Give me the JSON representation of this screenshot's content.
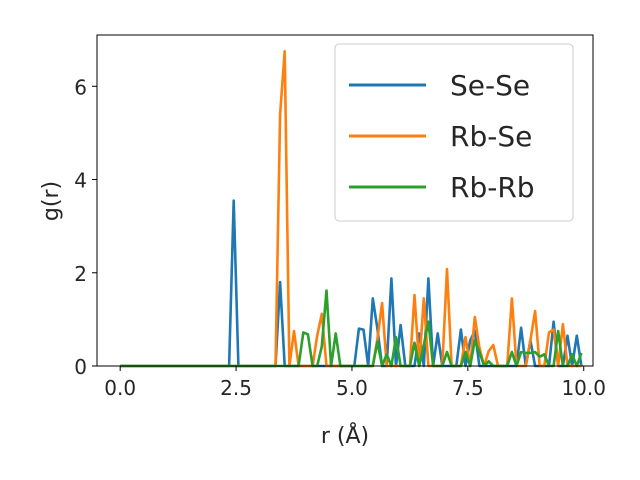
{
  "chart_data": {
    "type": "line",
    "title": "",
    "xlabel": "r (Å)",
    "ylabel": "g(r)",
    "xlim": [
      -0.5,
      10.2
    ],
    "ylim": [
      0,
      7.1
    ],
    "xticks": [
      0.0,
      2.5,
      5.0,
      7.5,
      10.0
    ],
    "xtick_labels": [
      "0.0",
      "2.5",
      "5.0",
      "7.5",
      "10.0"
    ],
    "yticks": [
      0,
      2,
      4,
      6
    ],
    "ytick_labels": [
      "0",
      "2",
      "4",
      "6"
    ],
    "grid": false,
    "legend_position": "top-right",
    "series": [
      {
        "name": "Se-Se",
        "color": "#1f77b4",
        "x": [
          0.0,
          2.25,
          2.35,
          2.45,
          2.55,
          3.35,
          3.45,
          3.55,
          5.05,
          5.15,
          5.25,
          5.35,
          5.45,
          5.55,
          5.65,
          5.75,
          5.85,
          5.95,
          6.05,
          6.15,
          6.25,
          6.35,
          6.45,
          6.55,
          6.65,
          6.75,
          6.85,
          6.95,
          7.05,
          7.15,
          7.25,
          7.35,
          7.45,
          7.55,
          7.65,
          7.75,
          7.85,
          7.95,
          8.05,
          8.15,
          8.25,
          8.35,
          8.45,
          8.55,
          8.65,
          8.75,
          8.85,
          8.95,
          9.05,
          9.15,
          9.25,
          9.35,
          9.45,
          9.55,
          9.65,
          9.75,
          9.85,
          9.95
        ],
        "y": [
          0.0,
          0.0,
          0.0,
          3.55,
          0.0,
          0.0,
          1.8,
          0.0,
          0.0,
          0.8,
          0.78,
          0.0,
          1.45,
          0.8,
          0.0,
          0.0,
          1.88,
          0.0,
          0.88,
          0.0,
          0.0,
          0.0,
          0.7,
          0.0,
          1.88,
          0.0,
          0.7,
          0.0,
          0.0,
          0.0,
          0.0,
          0.78,
          0.0,
          0.55,
          0.75,
          0.0,
          0.0,
          0.0,
          0.0,
          0.0,
          0.0,
          0.0,
          0.0,
          0.0,
          0.82,
          0.0,
          0.55,
          0.0,
          0.0,
          0.0,
          0.0,
          0.95,
          0.0,
          0.0,
          0.65,
          0.0,
          0.65,
          0.0
        ]
      },
      {
        "name": "Rb-Se",
        "color": "#ff7f0e",
        "x": [
          0.0,
          3.35,
          3.45,
          3.55,
          3.65,
          3.75,
          3.85,
          3.95,
          4.05,
          4.15,
          4.25,
          4.35,
          4.45,
          4.55,
          4.65,
          4.75,
          4.85,
          5.35,
          5.45,
          5.55,
          5.65,
          5.75,
          5.85,
          5.95,
          6.05,
          6.15,
          6.25,
          6.35,
          6.45,
          6.55,
          6.65,
          6.75,
          6.85,
          6.95,
          7.05,
          7.15,
          7.25,
          7.35,
          7.45,
          7.55,
          7.65,
          7.75,
          7.85,
          7.95,
          8.05,
          8.15,
          8.25,
          8.35,
          8.45,
          8.55,
          8.65,
          8.75,
          8.85,
          8.95,
          9.05,
          9.15,
          9.25,
          9.35,
          9.45,
          9.55,
          9.65,
          9.75,
          9.85,
          9.95
        ],
        "y": [
          0.0,
          0.0,
          5.4,
          6.75,
          0.0,
          0.75,
          0.0,
          0.0,
          0.0,
          0.0,
          0.65,
          1.12,
          0.0,
          0.0,
          0.0,
          0.0,
          0.0,
          0.0,
          0.0,
          0.58,
          1.35,
          0.0,
          0.0,
          0.0,
          0.0,
          0.0,
          0.0,
          1.52,
          0.0,
          1.45,
          0.0,
          0.0,
          0.0,
          0.0,
          2.08,
          0.0,
          0.0,
          0.0,
          0.62,
          0.0,
          1.05,
          0.4,
          0.0,
          0.32,
          0.45,
          0.0,
          0.0,
          0.0,
          1.45,
          0.0,
          0.0,
          0.0,
          0.55,
          1.18,
          0.0,
          0.0,
          0.72,
          0.78,
          0.0,
          0.9,
          0.0,
          0.0,
          0.0,
          0.0
        ]
      },
      {
        "name": "Rb-Rb",
        "color": "#2ca02c",
        "x": [
          0.0,
          3.85,
          3.95,
          4.05,
          4.15,
          4.25,
          4.35,
          4.45,
          4.55,
          4.65,
          4.75,
          4.85,
          4.95,
          5.45,
          5.55,
          5.65,
          5.75,
          5.85,
          5.95,
          6.05,
          6.15,
          6.25,
          6.35,
          6.45,
          6.55,
          6.65,
          6.75,
          6.85,
          6.95,
          7.05,
          7.15,
          7.25,
          7.35,
          7.45,
          7.55,
          7.65,
          7.75,
          7.85,
          7.95,
          8.05,
          8.15,
          8.25,
          8.35,
          8.45,
          8.55,
          8.65,
          8.75,
          8.85,
          8.95,
          9.05,
          9.15,
          9.25,
          9.35,
          9.45,
          9.55,
          9.65,
          9.75,
          9.85,
          9.95
        ],
        "y": [
          0.0,
          0.0,
          0.72,
          0.68,
          0.0,
          0.0,
          0.42,
          1.62,
          0.0,
          0.7,
          0.0,
          0.0,
          0.0,
          0.0,
          0.52,
          0.0,
          0.25,
          0.0,
          0.62,
          0.0,
          0.0,
          0.0,
          0.5,
          0.0,
          0.45,
          0.95,
          0.0,
          0.0,
          0.0,
          0.3,
          0.0,
          0.0,
          0.0,
          0.3,
          0.0,
          0.55,
          0.3,
          0.0,
          0.1,
          0.0,
          0.0,
          0.0,
          0.0,
          0.3,
          0.0,
          0.3,
          0.28,
          0.28,
          0.3,
          0.2,
          0.25,
          0.0,
          0.0,
          0.75,
          0.0,
          0.0,
          0.25,
          0.0,
          0.28
        ]
      }
    ]
  }
}
